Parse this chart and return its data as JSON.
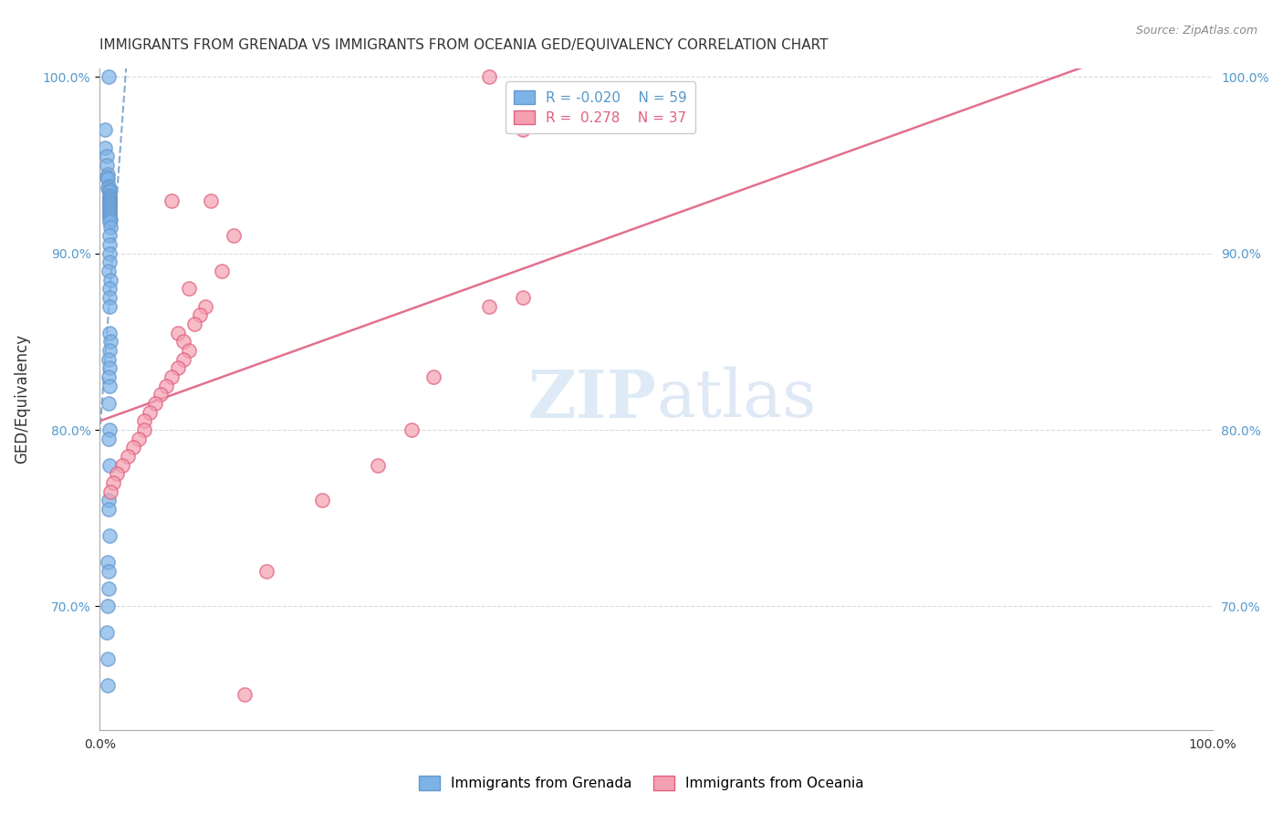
{
  "title": "IMMIGRANTS FROM GRENADA VS IMMIGRANTS FROM OCEANIA GED/EQUIVALENCY CORRELATION CHART",
  "source": "Source: ZipAtlas.com",
  "ylabel": "GED/Equivalency",
  "xlim": [
    0.0,
    1.0
  ],
  "ylim": [
    0.63,
    1.005
  ],
  "yticks": [
    0.7,
    0.8,
    0.9,
    1.0
  ],
  "ytick_labels": [
    "70.0%",
    "80.0%",
    "90.0%",
    "100.0%"
  ],
  "legend_r1": "R = -0.020",
  "legend_n1": "N = 59",
  "legend_r2": "R =  0.278",
  "legend_n2": "N = 37",
  "blue_color": "#7EB3E8",
  "pink_color": "#F4A0B0",
  "blue_line_color": "#6699CC",
  "pink_line_color": "#E06080",
  "blue_text_color": "#5599CC",
  "pink_text_color": "#E06080",
  "watermark_zip": "ZIP",
  "watermark_atlas": "atlas",
  "grenada_x": [
    0.008,
    0.005,
    0.005,
    0.006,
    0.006,
    0.007,
    0.006,
    0.007,
    0.008,
    0.007,
    0.009,
    0.009,
    0.009,
    0.009,
    0.009,
    0.009,
    0.009,
    0.009,
    0.009,
    0.009,
    0.009,
    0.009,
    0.009,
    0.009,
    0.009,
    0.009,
    0.01,
    0.009,
    0.01,
    0.009,
    0.009,
    0.009,
    0.009,
    0.008,
    0.01,
    0.009,
    0.009,
    0.009,
    0.009,
    0.01,
    0.009,
    0.008,
    0.009,
    0.008,
    0.009,
    0.008,
    0.009,
    0.008,
    0.009,
    0.008,
    0.008,
    0.009,
    0.007,
    0.008,
    0.008,
    0.007,
    0.006,
    0.007,
    0.007
  ],
  "grenada_y": [
    1.0,
    0.97,
    0.96,
    0.955,
    0.95,
    0.945,
    0.943,
    0.942,
    0.938,
    0.937,
    0.936,
    0.935,
    0.933,
    0.932,
    0.931,
    0.93,
    0.929,
    0.928,
    0.927,
    0.926,
    0.925,
    0.924,
    0.923,
    0.922,
    0.921,
    0.92,
    0.919,
    0.918,
    0.915,
    0.91,
    0.905,
    0.9,
    0.895,
    0.89,
    0.885,
    0.88,
    0.875,
    0.87,
    0.855,
    0.85,
    0.845,
    0.84,
    0.835,
    0.83,
    0.825,
    0.815,
    0.8,
    0.795,
    0.78,
    0.76,
    0.755,
    0.74,
    0.725,
    0.72,
    0.71,
    0.7,
    0.685,
    0.67,
    0.655
  ],
  "oceania_x": [
    0.35,
    0.065,
    0.1,
    0.12,
    0.11,
    0.08,
    0.095,
    0.09,
    0.085,
    0.07,
    0.075,
    0.08,
    0.075,
    0.07,
    0.065,
    0.06,
    0.055,
    0.05,
    0.045,
    0.04,
    0.04,
    0.035,
    0.03,
    0.025,
    0.02,
    0.015,
    0.012,
    0.01,
    0.38,
    0.35,
    0.3,
    0.28,
    0.25,
    0.2,
    0.15,
    0.13,
    0.38
  ],
  "oceania_y": [
    1.0,
    0.93,
    0.93,
    0.91,
    0.89,
    0.88,
    0.87,
    0.865,
    0.86,
    0.855,
    0.85,
    0.845,
    0.84,
    0.835,
    0.83,
    0.825,
    0.82,
    0.815,
    0.81,
    0.805,
    0.8,
    0.795,
    0.79,
    0.785,
    0.78,
    0.775,
    0.77,
    0.765,
    0.875,
    0.87,
    0.83,
    0.8,
    0.78,
    0.76,
    0.72,
    0.65,
    0.97
  ]
}
